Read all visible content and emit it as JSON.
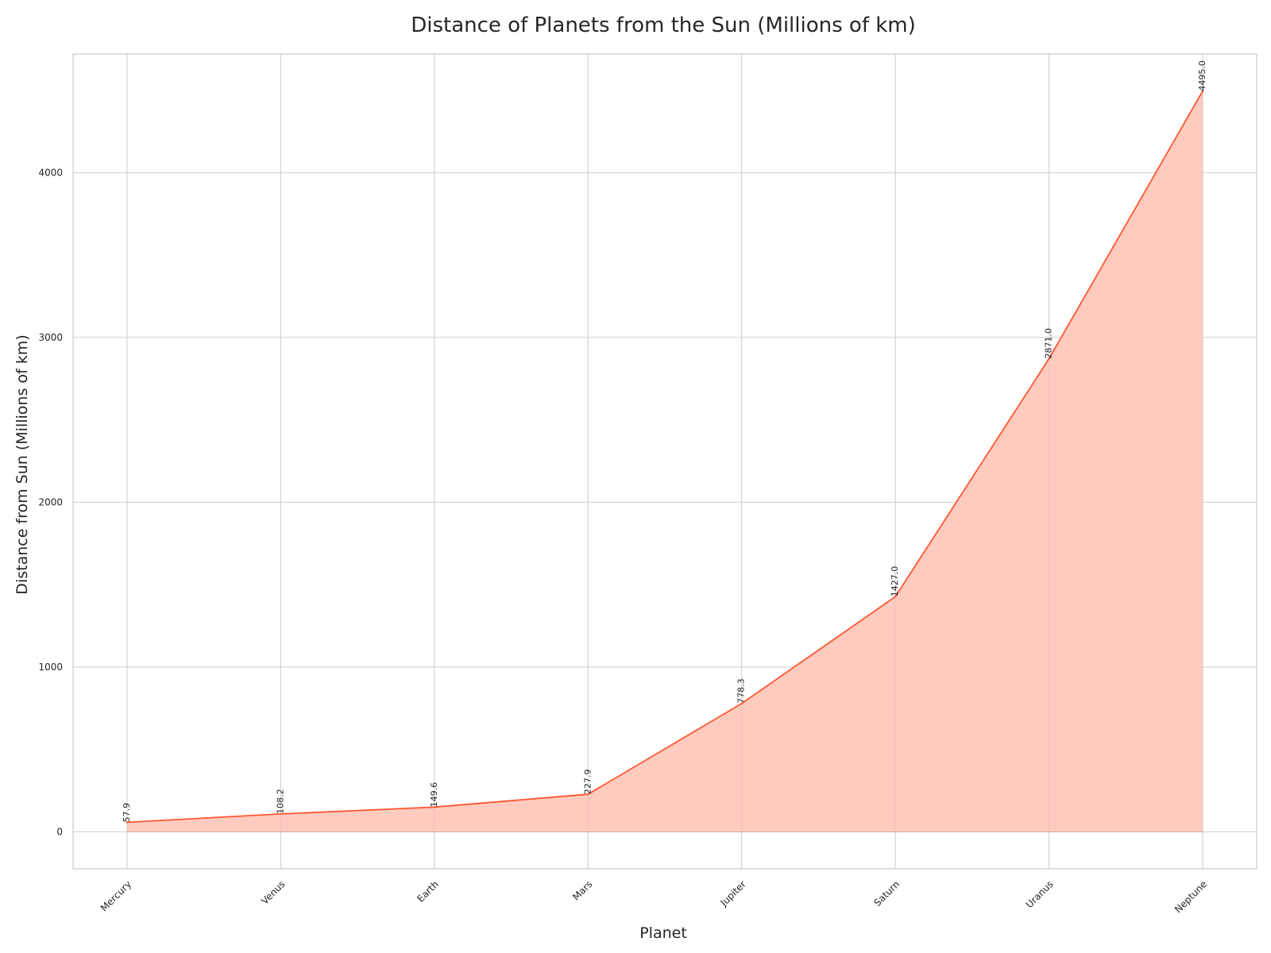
{
  "chart_data": {
    "type": "area",
    "title": "Distance of Planets from the Sun (Millions of km)",
    "xlabel": "Planet",
    "ylabel": "Distance from Sun (Millions of km)",
    "categories": [
      "Mercury",
      "Venus",
      "Earth",
      "Mars",
      "Jupiter",
      "Saturn",
      "Uranus",
      "Neptune"
    ],
    "values": [
      57.9,
      108.2,
      149.6,
      227.9,
      778.3,
      1427.0,
      2871.0,
      4495.0
    ],
    "data_labels": [
      "57.9",
      "108.2",
      "149.6",
      "227.9",
      "778.3",
      "1427.0",
      "2871.0",
      "4495.0"
    ],
    "yticks": [
      0,
      1000,
      2000,
      3000,
      4000
    ],
    "ylim": [
      -224.75,
      4719.75
    ],
    "grid": true,
    "line_color": "#ff5733",
    "fill_color": "#ffcbbf"
  }
}
